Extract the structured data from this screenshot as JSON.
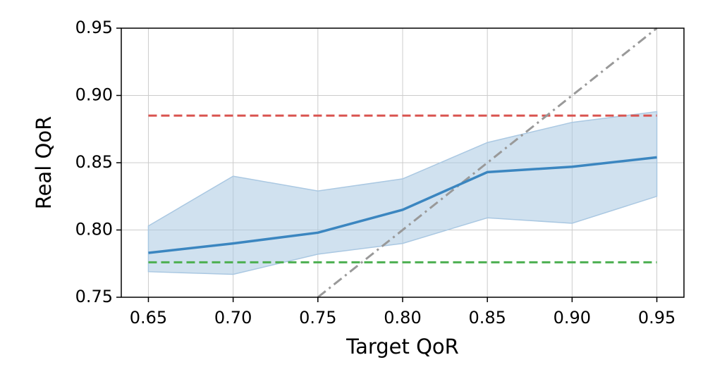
{
  "chart_data": {
    "type": "line",
    "x_label": "Target QoR",
    "y_label": "Real QoR",
    "x": [
      0.65,
      0.7,
      0.75,
      0.8,
      0.85,
      0.9,
      0.95
    ],
    "series": [
      {
        "color": "#3b86c0",
        "values": [
          0.783,
          0.79,
          0.798,
          0.815,
          0.843,
          0.847,
          0.854
        ]
      }
    ],
    "band": {
      "color": "#aac8e2",
      "upper": [
        0.803,
        0.84,
        0.829,
        0.838,
        0.865,
        0.88,
        0.888
      ],
      "lower": [
        0.769,
        0.767,
        0.782,
        0.79,
        0.809,
        0.805,
        0.825
      ]
    },
    "hlines": [
      {
        "y": 0.885,
        "color": "#d9534f",
        "style": "dashed"
      },
      {
        "y": 0.776,
        "color": "#4caf50",
        "style": "dashed"
      }
    ],
    "diagonal": {
      "color": "#999999",
      "style": "dashdot",
      "x": [
        0.75,
        0.95
      ],
      "values": [
        0.75,
        0.95
      ]
    },
    "xlim": [
      0.634,
      0.966
    ],
    "ylim": [
      0.75,
      0.95
    ],
    "xticks": [
      0.65,
      {
        "value": 0.7,
        "label": "0.70"
      },
      0.75,
      {
        "value": 0.8,
        "label": "0.80"
      },
      0.85,
      {
        "value": 0.9,
        "label": "0.90"
      },
      0.95
    ],
    "yticks": [
      0.75,
      {
        "value": 0.8,
        "label": "0.80"
      },
      0.85,
      {
        "value": 0.9,
        "label": "0.90"
      },
      0.95
    ],
    "grid": true
  }
}
